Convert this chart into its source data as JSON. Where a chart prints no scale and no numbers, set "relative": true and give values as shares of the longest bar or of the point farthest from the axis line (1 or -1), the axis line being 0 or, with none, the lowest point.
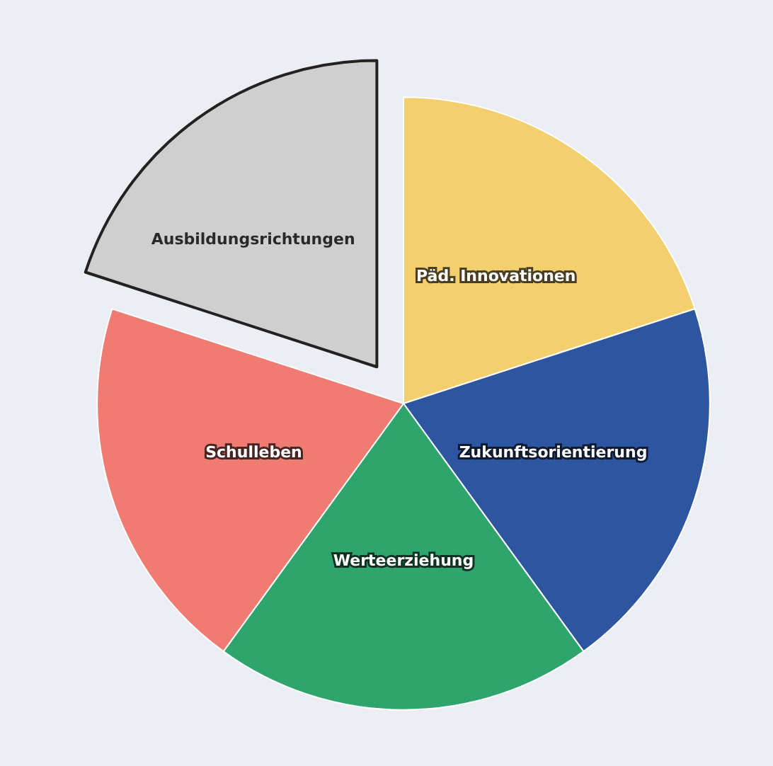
{
  "chart_data": {
    "type": "pie",
    "relative": true,
    "categories": [
      "Päd. Innovationen",
      "Zukunftsorientierung",
      "Werteerziehung",
      "Schulleben",
      "Ausbildungsrichtungen"
    ],
    "values": [
      20,
      20,
      20,
      20,
      20
    ],
    "colors": [
      "#f3cf6e",
      "#2e55a0",
      "#2fa56e",
      "#ef7b72",
      "#cfcfcf"
    ],
    "legend": false
  }
}
